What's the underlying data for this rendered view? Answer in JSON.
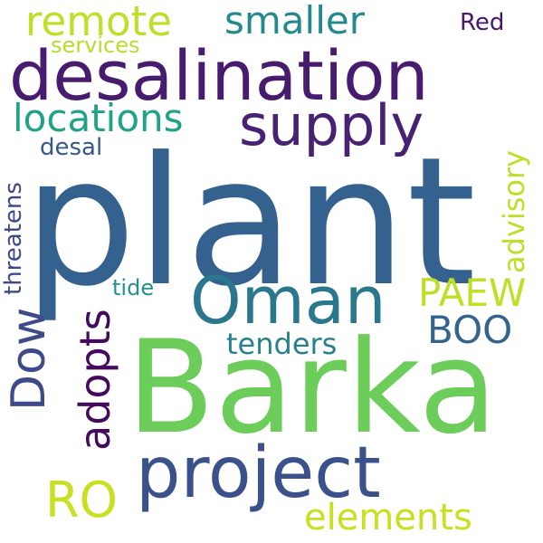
{
  "words": {
    "plant": {
      "text": "plant",
      "color": "#34618d"
    },
    "barka": {
      "text": "Barka",
      "color": "#6ccd5a"
    },
    "desalination": {
      "text": "desalination",
      "color": "#471b6e"
    },
    "project": {
      "text": "project",
      "color": "#3b518b"
    },
    "oman": {
      "text": "Oman",
      "color": "#2a778e"
    },
    "supply": {
      "text": "supply",
      "color": "#482172"
    },
    "remote": {
      "text": "remote",
      "color": "#bddf26"
    },
    "smaller": {
      "text": "smaller",
      "color": "#23898e"
    },
    "locations": {
      "text": "locations",
      "color": "#1fa287"
    },
    "dow": {
      "text": "Dow",
      "color": "#3e4a89"
    },
    "adopts": {
      "text": "adopts",
      "color": "#440a5e"
    },
    "ro": {
      "text": "RO",
      "color": "#c8e020"
    },
    "elements": {
      "text": "elements",
      "color": "#c8e020"
    },
    "paew": {
      "text": "PAEW",
      "color": "#bddf26"
    },
    "boo": {
      "text": "BOO",
      "color": "#32648e"
    },
    "tenders": {
      "text": "tenders",
      "color": "#27808e"
    },
    "advisory": {
      "text": "advisory",
      "color": "#bddf26"
    },
    "threatens": {
      "text": "threatens",
      "color": "#3f4788"
    },
    "services": {
      "text": "services",
      "color": "#b5de2b"
    },
    "red": {
      "text": "Red",
      "color": "#481769"
    },
    "desal": {
      "text": "desal",
      "color": "#38588c"
    },
    "tide": {
      "text": "tide",
      "color": "#21918c"
    }
  }
}
